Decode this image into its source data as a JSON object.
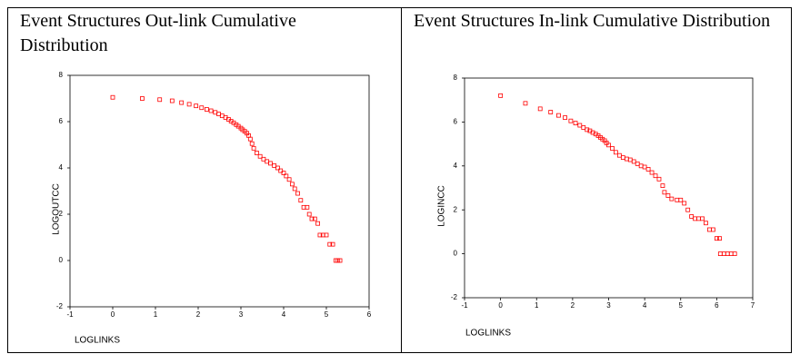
{
  "chart_data": [
    {
      "type": "scatter",
      "title": "Event Structures Out-link Cumulative Distribution",
      "x_label": "LOGLINKS",
      "y_label": "LOGOUTCC",
      "color": "#ff0000",
      "xlim": [
        -1,
        6
      ],
      "xticks": [
        -1,
        0,
        1,
        2,
        3,
        4,
        5,
        6
      ],
      "ylim": [
        -2,
        8
      ],
      "yticks": [
        -2,
        0,
        2,
        4,
        6,
        8
      ],
      "x": [
        0,
        0.69,
        1.1,
        1.39,
        1.61,
        1.79,
        1.95,
        2.08,
        2.2,
        2.3,
        2.4,
        2.48,
        2.56,
        2.64,
        2.71,
        2.77,
        2.83,
        2.89,
        2.94,
        3.0,
        3.04,
        3.09,
        3.14,
        3.18,
        3.22,
        3.26,
        3.3,
        3.37,
        3.45,
        3.53,
        3.61,
        3.69,
        3.78,
        3.86,
        3.93,
        4.0,
        4.06,
        4.13,
        4.2,
        4.26,
        4.33,
        4.4,
        4.47,
        4.55,
        4.6,
        4.66,
        4.73,
        4.8,
        4.85,
        4.92,
        5.0,
        5.08,
        5.15,
        5.22,
        5.27,
        5.32
      ],
      "values": [
        7.05,
        7.0,
        6.95,
        6.9,
        6.82,
        6.75,
        6.68,
        6.6,
        6.53,
        6.47,
        6.4,
        6.33,
        6.25,
        6.18,
        6.1,
        6.02,
        5.95,
        5.87,
        5.8,
        5.72,
        5.65,
        5.58,
        5.5,
        5.4,
        5.25,
        5.05,
        4.85,
        4.65,
        4.5,
        4.38,
        4.28,
        4.2,
        4.1,
        4.0,
        3.88,
        3.78,
        3.65,
        3.5,
        3.3,
        3.1,
        2.9,
        2.6,
        2.3,
        2.3,
        2.0,
        1.8,
        1.8,
        1.6,
        1.1,
        1.1,
        1.1,
        0.7,
        0.7,
        0,
        0,
        0
      ]
    },
    {
      "type": "scatter",
      "title": "Event Structures In-link Cumulative Distribution",
      "x_label": "LOGLINKS",
      "y_label": "LOGINCC",
      "color": "#ff0000",
      "xlim": [
        -1,
        7
      ],
      "xticks": [
        -1,
        0,
        1,
        2,
        3,
        4,
        5,
        6,
        7
      ],
      "ylim": [
        -2,
        8
      ],
      "yticks": [
        -2,
        0,
        2,
        4,
        6,
        8
      ],
      "x": [
        0,
        0.69,
        1.1,
        1.39,
        1.61,
        1.79,
        1.95,
        2.08,
        2.2,
        2.3,
        2.4,
        2.48,
        2.56,
        2.64,
        2.71,
        2.77,
        2.83,
        2.89,
        2.94,
        3.0,
        3.1,
        3.2,
        3.3,
        3.4,
        3.5,
        3.6,
        3.7,
        3.8,
        3.9,
        4.0,
        4.1,
        4.2,
        4.3,
        4.4,
        4.5,
        4.55,
        4.65,
        4.75,
        4.9,
        5.0,
        5.1,
        5.2,
        5.3,
        5.4,
        5.5,
        5.6,
        5.7,
        5.8,
        5.9,
        6.0,
        6.08,
        6.1,
        6.2,
        6.3,
        6.4,
        6.5
      ],
      "values": [
        7.2,
        6.85,
        6.6,
        6.45,
        6.3,
        6.2,
        6.05,
        5.95,
        5.85,
        5.75,
        5.65,
        5.6,
        5.52,
        5.45,
        5.38,
        5.3,
        5.22,
        5.15,
        5.05,
        4.95,
        4.8,
        4.62,
        4.48,
        4.38,
        4.32,
        4.28,
        4.2,
        4.1,
        4.0,
        3.95,
        3.85,
        3.7,
        3.55,
        3.4,
        3.1,
        2.8,
        2.65,
        2.5,
        2.45,
        2.45,
        2.3,
        2.0,
        1.7,
        1.6,
        1.6,
        1.6,
        1.4,
        1.1,
        1.1,
        0.7,
        0.7,
        0,
        0,
        0,
        0,
        0
      ]
    }
  ]
}
